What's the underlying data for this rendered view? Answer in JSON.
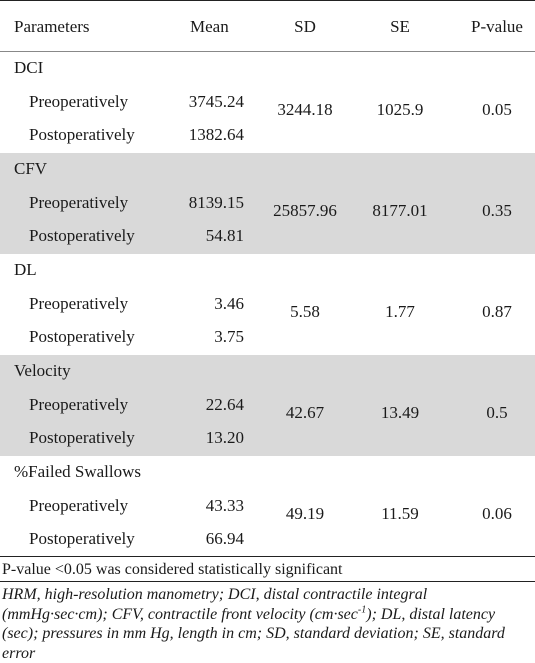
{
  "table": {
    "headers": {
      "parameters": "Parameters",
      "mean": "Mean",
      "sd": "SD",
      "se": "SE",
      "pvalue": "P-value"
    },
    "groups": [
      {
        "name": "DCI",
        "pre_label": "Preoperatively",
        "pre_mean": "3745.24",
        "post_label": "Postoperatively",
        "post_mean": "1382.64",
        "sd": "3244.18",
        "se": "1025.9",
        "p": "0.05"
      },
      {
        "name": "CFV",
        "pre_label": "Preoperatively",
        "pre_mean": "8139.15",
        "post_label": "Postoperatively",
        "post_mean": "54.81",
        "sd": "25857.96",
        "se": "8177.01",
        "p": "0.35"
      },
      {
        "name": "DL",
        "pre_label": "Preoperatively",
        "pre_mean": "3.46",
        "post_label": "Postoperatively",
        "post_mean": "3.75",
        "sd": "5.58",
        "se": "1.77",
        "p": "0.87"
      },
      {
        "name": "Velocity",
        "pre_label": "Preoperatively",
        "pre_mean": "22.64",
        "post_label": "Postoperatively",
        "post_mean": "13.20",
        "sd": "42.67",
        "se": "13.49",
        "p": "0.5"
      },
      {
        "name": "%Failed Swallows",
        "pre_label": "Preoperatively",
        "pre_mean": "43.33",
        "post_label": "Postoperatively",
        "post_mean": "66.94",
        "sd": "49.19",
        "se": "11.59",
        "p": "0.06"
      }
    ]
  },
  "note": "P-value <0.05 was considered statistically significant",
  "footnote": {
    "part1": "HRM, high-resolution manometry; DCI, distal contractile integral (mmHg·sec·cm); CFV, contractile front velocity (cm·sec",
    "sup": "-1",
    "part2": "); DL, distal latency (sec); pressures in mm Hg, length in cm; SD, standard deviation; SE, standard error"
  }
}
